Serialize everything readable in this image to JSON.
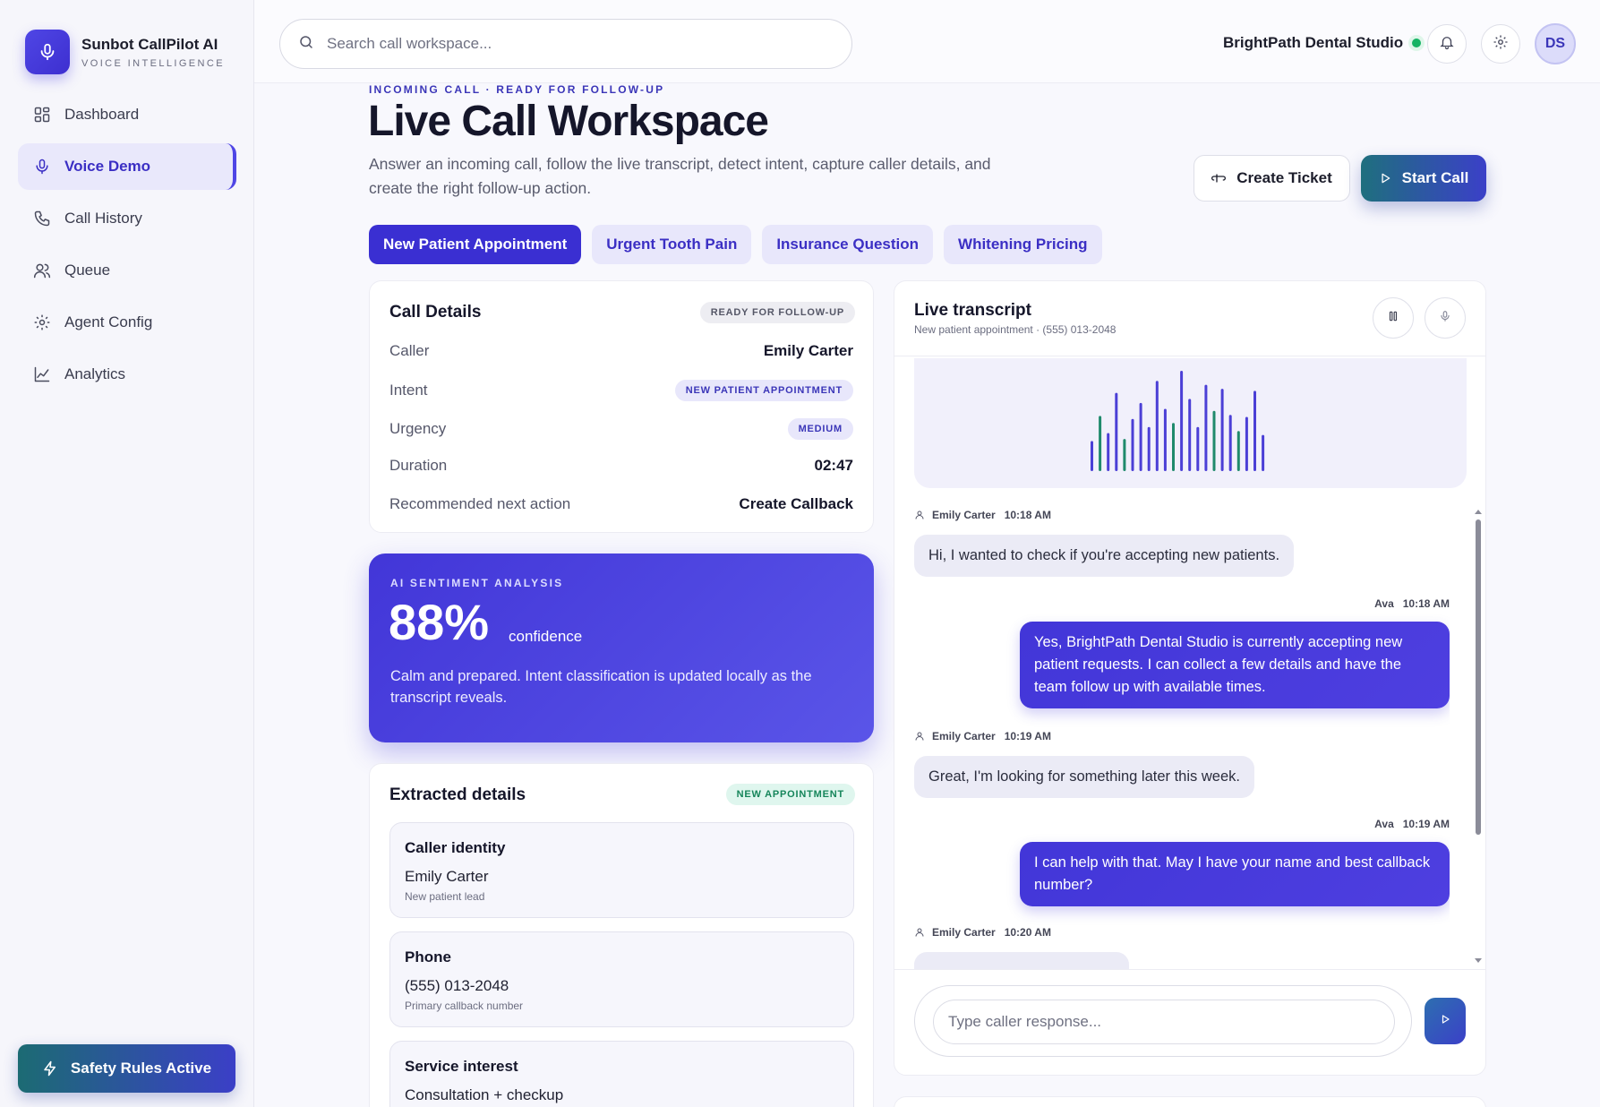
{
  "brand": {
    "title": "Sunbot CallPilot AI",
    "subtitle": "VOICE INTELLIGENCE"
  },
  "sidebar": {
    "items": [
      {
        "label": "Dashboard",
        "icon": "grid-icon",
        "active": false
      },
      {
        "label": "Voice Demo",
        "icon": "mic-icon",
        "active": true
      },
      {
        "label": "Call History",
        "icon": "phone-icon",
        "active": false
      },
      {
        "label": "Queue",
        "icon": "users-icon",
        "active": false
      },
      {
        "label": "Agent Config",
        "icon": "gear-icon",
        "active": false
      },
      {
        "label": "Analytics",
        "icon": "chart-icon",
        "active": false
      }
    ],
    "safety_label": "Safety Rules Active"
  },
  "topbar": {
    "search_placeholder": "Search call workspace...",
    "org_name": "BrightPath Dental Studio",
    "avatar_initials": "DS"
  },
  "header": {
    "eyebrow": "INCOMING CALL · READY FOR FOLLOW-UP",
    "title": "Live Call Workspace",
    "description": "Answer an incoming call, follow the live transcript, detect intent, capture caller details, and create the right follow-up action.",
    "create_ticket": "Create Ticket",
    "start_call": "Start Call"
  },
  "scenarios": [
    {
      "label": "New Patient Appointment",
      "active": true
    },
    {
      "label": "Urgent Tooth Pain",
      "active": false
    },
    {
      "label": "Insurance Question",
      "active": false
    },
    {
      "label": "Whitening Pricing",
      "active": false
    }
  ],
  "call_details": {
    "title": "Call Details",
    "status_badge": "READY FOR FOLLOW-UP",
    "rows": {
      "caller": {
        "label": "Caller",
        "value": "Emily Carter"
      },
      "intent": {
        "label": "Intent",
        "value": "NEW PATIENT APPOINTMENT"
      },
      "urgency": {
        "label": "Urgency",
        "value": "MEDIUM"
      },
      "duration": {
        "label": "Duration",
        "value": "02:47"
      },
      "next_action": {
        "label": "Recommended next action",
        "value": "Create Callback"
      }
    }
  },
  "sentiment": {
    "label": "AI SENTIMENT ANALYSIS",
    "value": "88%",
    "unit": "confidence",
    "description": "Calm and prepared. Intent classification is updated locally as the transcript reveals."
  },
  "extracted": {
    "title": "Extracted details",
    "badge": "NEW APPOINTMENT",
    "items": [
      {
        "title": "Caller identity",
        "value": "Emily Carter",
        "sub": "New patient lead"
      },
      {
        "title": "Phone",
        "value": "(555) 013-2048",
        "sub": "Primary callback number"
      },
      {
        "title": "Service interest",
        "value": "Consultation + checkup",
        "sub": ""
      }
    ]
  },
  "transcript": {
    "title": "Live transcript",
    "subtitle": "New patient appointment · (555) 013-2048",
    "messages": [
      {
        "speaker": "Emily Carter",
        "time": "10:18 AM",
        "role": "caller",
        "text": "Hi, I wanted to check if you're accepting new patients."
      },
      {
        "speaker": "Ava",
        "time": "10:18 AM",
        "role": "agent",
        "text": "Yes, BrightPath Dental Studio is currently accepting new patient requests. I can collect a few details and have the team follow up with available times."
      },
      {
        "speaker": "Emily Carter",
        "time": "10:19 AM",
        "role": "caller",
        "text": "Great, I'm looking for something later this week."
      },
      {
        "speaker": "Ava",
        "time": "10:19 AM",
        "role": "agent",
        "text": "I can help with that. May I have your name and best callback number?"
      },
      {
        "speaker": "Emily Carter",
        "time": "10:20 AM",
        "role": "caller",
        "text": ""
      }
    ],
    "reply_placeholder": "Type caller response...",
    "waveform": {
      "levels": [
        0.3,
        0.55,
        0.38,
        0.78,
        0.32,
        0.52,
        0.68,
        0.44,
        0.9,
        0.62,
        0.48,
        1.0,
        0.72,
        0.44,
        0.86,
        0.6,
        0.82,
        0.56,
        0.4,
        0.54,
        0.8,
        0.36
      ],
      "accent_indices": [
        1,
        4,
        10,
        15,
        18
      ],
      "color_primary": "#4b3fd6",
      "color_accent": "#1f8a6c"
    }
  }
}
